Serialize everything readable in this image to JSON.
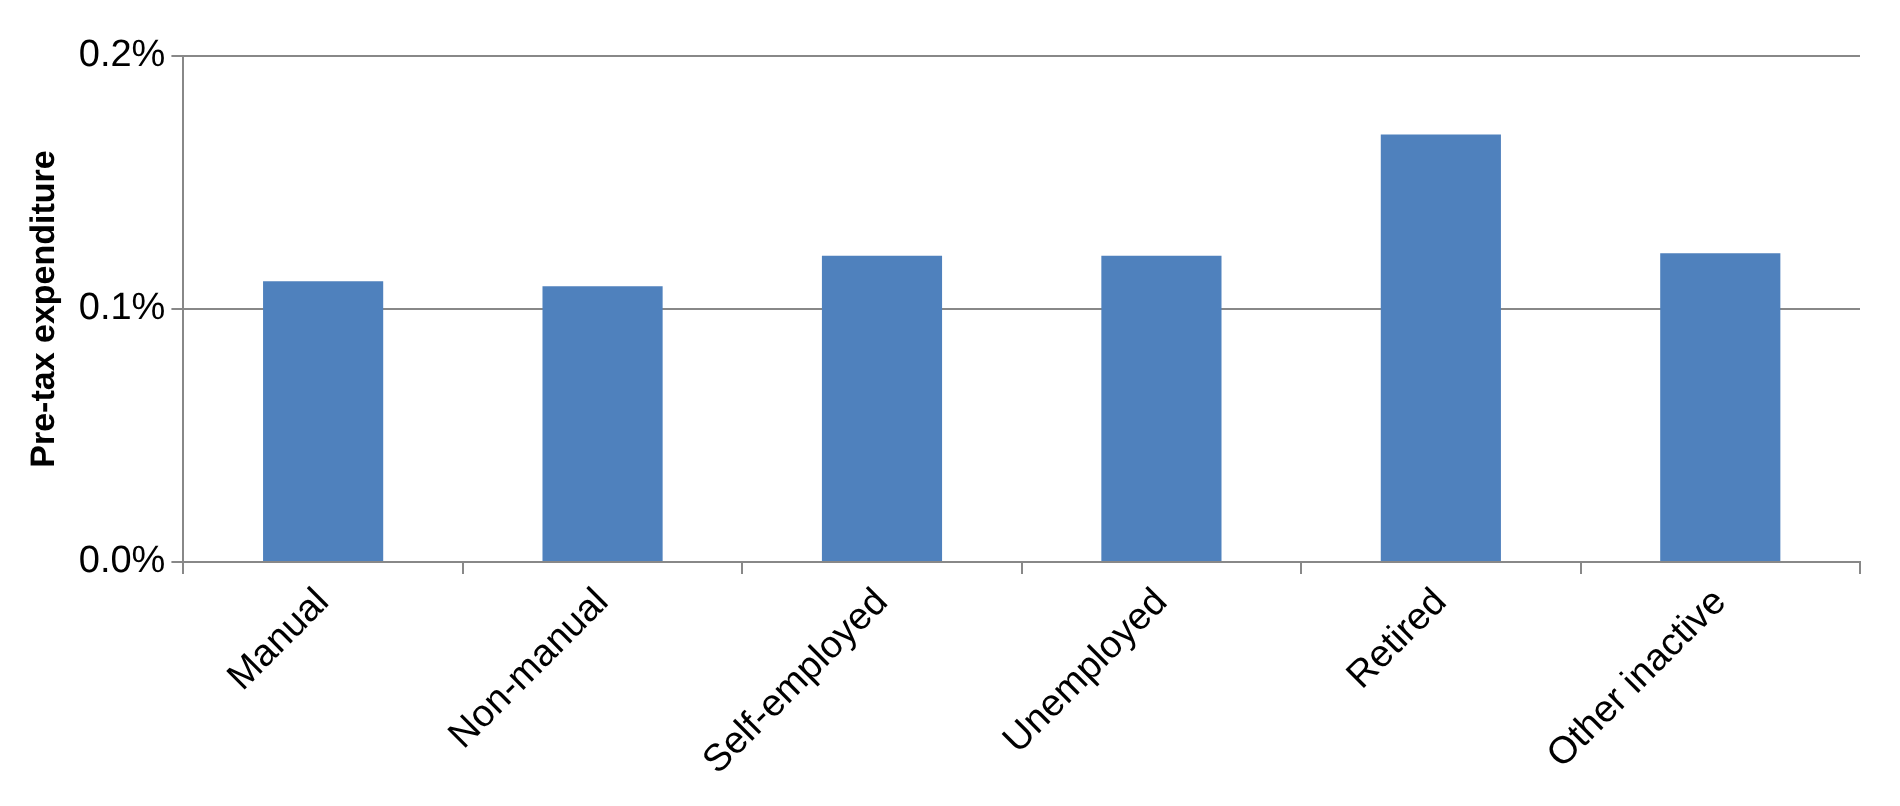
{
  "chart_data": {
    "type": "bar",
    "ylabel": "Pre-tax expenditure",
    "categories": [
      "Manual",
      "Non-manual",
      "Self-employed",
      "Unemployed",
      "Retired",
      "Other inactive"
    ],
    "values": [
      0.111,
      0.109,
      0.121,
      0.121,
      0.169,
      0.122
    ],
    "color": "#4f81bd",
    "ylim": [
      0,
      0.2
    ],
    "yticks": [
      {
        "value": 0,
        "label": "0.0%"
      },
      {
        "value": 0.1,
        "label": "0.1%"
      },
      {
        "value": 0.2,
        "label": "0.2%"
      }
    ],
    "grid": "y",
    "legend": false
  }
}
